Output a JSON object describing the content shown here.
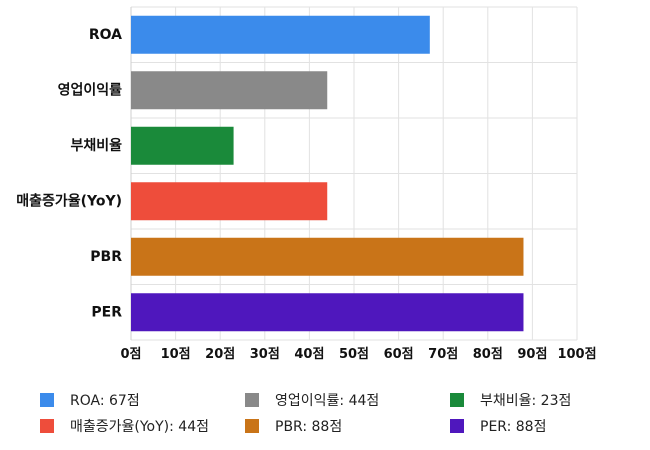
{
  "chart_data": {
    "type": "bar",
    "orientation": "horizontal",
    "categories": [
      "ROA",
      "영업이익률",
      "부채비율",
      "매출증가율(YoY)",
      "PBR",
      "PER"
    ],
    "values": [
      67,
      44,
      23,
      44,
      88,
      88
    ],
    "colors": [
      "#3b8beb",
      "#898989",
      "#1a8a3a",
      "#ee4d3b",
      "#c97418",
      "#4f17bd"
    ],
    "xlim": [
      0,
      100
    ],
    "xticks": [
      0,
      10,
      20,
      30,
      40,
      50,
      60,
      70,
      80,
      90,
      100
    ],
    "tick_suffix": "점",
    "grid": true,
    "legend_position": "bottom"
  },
  "legend": [
    {
      "label": "ROA: 67점",
      "color": "#3b8beb"
    },
    {
      "label": "영업이익률: 44점",
      "color": "#898989"
    },
    {
      "label": "부채비율: 23점",
      "color": "#1a8a3a"
    },
    {
      "label": "매출증가율(YoY): 44점",
      "color": "#ee4d3b"
    },
    {
      "label": "PBR: 88점",
      "color": "#c97418"
    },
    {
      "label": "PER: 88점",
      "color": "#4f17bd"
    }
  ]
}
